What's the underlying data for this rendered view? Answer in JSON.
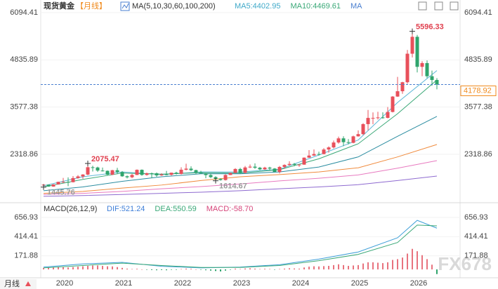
{
  "chart_data": {
    "type": "candlestick",
    "title": "现货黄金",
    "period": "【月线】",
    "ma_legend": "MA(5,10,30,60,100,200)",
    "ma_readouts": [
      {
        "text": "MA5:4402.95",
        "color": "#3fa9c9"
      },
      {
        "text": "MA10:4469.61",
        "color": "#3aa877"
      },
      {
        "text": "MA",
        "color": "#4a7fd0"
      }
    ],
    "categories": [
      null,
      null,
      null,
      "2020",
      null,
      null,
      null,
      null,
      null,
      null,
      null,
      null,
      null,
      null,
      null,
      "2021",
      null,
      null,
      null,
      null,
      null,
      null,
      null,
      null,
      null,
      null,
      null,
      "2022",
      null,
      null,
      null,
      null,
      null,
      null,
      null,
      null,
      null,
      null,
      null,
      "2023",
      null,
      null,
      null,
      null,
      null,
      null,
      null,
      null,
      null,
      null,
      null,
      "2024",
      null,
      null,
      null,
      null,
      null,
      null,
      null,
      null,
      null,
      null,
      null,
      "2025",
      null,
      null,
      null,
      null,
      null,
      null,
      null,
      null,
      null,
      null,
      null,
      "2026",
      null,
      null,
      null,
      null,
      null
    ],
    "ohlc": [
      [
        1490,
        1530,
        1445.76,
        1510
      ],
      [
        1510,
        1515,
        1455,
        1460
      ],
      [
        1460,
        1525,
        1455,
        1517
      ],
      [
        1517,
        1590,
        1510,
        1585
      ],
      [
        1585,
        1690,
        1560,
        1585
      ],
      [
        1585,
        1705,
        1470,
        1577
      ],
      [
        1577,
        1740,
        1570,
        1686
      ],
      [
        1686,
        1765,
        1670,
        1730
      ],
      [
        1730,
        1790,
        1670,
        1780
      ],
      [
        1780,
        2075.47,
        1760,
        1975
      ],
      [
        1975,
        2015,
        1860,
        1968
      ],
      [
        1968,
        1990,
        1850,
        1886
      ],
      [
        1886,
        1965,
        1860,
        1879
      ],
      [
        1879,
        1890,
        1765,
        1776
      ],
      [
        1776,
        1905,
        1765,
        1895
      ],
      [
        1895,
        1960,
        1805,
        1847
      ],
      [
        1847,
        1872,
        1718,
        1734
      ],
      [
        1734,
        1755,
        1677,
        1708
      ],
      [
        1708,
        1798,
        1680,
        1769
      ],
      [
        1769,
        1916,
        1765,
        1906
      ],
      [
        1906,
        1917,
        1750,
        1770
      ],
      [
        1770,
        1832,
        1752,
        1814
      ],
      [
        1814,
        1834,
        1687,
        1813
      ],
      [
        1813,
        1835,
        1720,
        1757
      ],
      [
        1757,
        1814,
        1746,
        1783
      ],
      [
        1783,
        1877,
        1758,
        1774
      ],
      [
        1774,
        1831,
        1753,
        1829
      ],
      [
        1829,
        1853,
        1780,
        1797
      ],
      [
        1797,
        1974,
        1781,
        1909
      ],
      [
        1909,
        2070,
        1890,
        1937
      ],
      [
        1937,
        1998,
        1872,
        1897
      ],
      [
        1897,
        1910,
        1787,
        1837
      ],
      [
        1837,
        1879,
        1805,
        1807
      ],
      [
        1807,
        1814,
        1680,
        1766
      ],
      [
        1766,
        1808,
        1688,
        1711
      ],
      [
        1711,
        1735,
        1614.67,
        1661
      ],
      [
        1661,
        1680,
        1617,
        1633
      ],
      [
        1633,
        1786,
        1620,
        1768
      ],
      [
        1768,
        1833,
        1765,
        1824
      ],
      [
        1824,
        1949,
        1823,
        1928
      ],
      [
        1928,
        1960,
        1804,
        1827
      ],
      [
        1827,
        2009,
        1810,
        1969
      ],
      [
        1969,
        2048,
        1949,
        1990
      ],
      [
        1990,
        2079,
        1932,
        1962
      ],
      [
        1962,
        1985,
        1893,
        1919
      ],
      [
        1919,
        1987,
        1903,
        1965
      ],
      [
        1965,
        1987,
        1885,
        1940
      ],
      [
        1940,
        1953,
        1848,
        1849
      ],
      [
        1849,
        2009,
        1810,
        1983
      ],
      [
        1983,
        2052,
        1932,
        2036
      ],
      [
        2036,
        2135,
        2017,
        2063
      ],
      [
        2063,
        2088,
        2002,
        2039
      ],
      [
        2039,
        2052,
        1984,
        2044
      ],
      [
        2044,
        2236,
        2040,
        2230
      ],
      [
        2230,
        2431,
        2228,
        2286
      ],
      [
        2286,
        2450,
        2277,
        2327
      ],
      [
        2327,
        2388,
        2286,
        2326
      ],
      [
        2326,
        2483,
        2319,
        2447
      ],
      [
        2447,
        2531,
        2364,
        2503
      ],
      [
        2503,
        2685,
        2472,
        2634
      ],
      [
        2634,
        2790,
        2603,
        2744
      ],
      [
        2744,
        2801,
        2536,
        2643
      ],
      [
        2643,
        2726,
        2583,
        2625
      ],
      [
        2625,
        2817,
        2614,
        2798
      ],
      [
        2798,
        2956,
        2790,
        2857
      ],
      [
        2857,
        3148,
        2833,
        3124
      ],
      [
        3124,
        3500,
        2957,
        3289
      ],
      [
        3289,
        3435,
        3121,
        3289
      ],
      [
        3289,
        3451,
        3247,
        3303
      ],
      [
        3303,
        3439,
        3268,
        3290
      ],
      [
        3290,
        3578,
        3280,
        3448
      ],
      [
        3448,
        3871,
        3436,
        3858
      ],
      [
        3858,
        4381,
        3850,
        4000
      ],
      [
        4000,
        4250,
        3930,
        4240
      ],
      [
        4240,
        5100,
        4200,
        5000
      ],
      [
        5000,
        5596.33,
        4900,
        5450
      ],
      [
        5450,
        5500,
        4500,
        4650
      ],
      [
        4650,
        4800,
        4400,
        4750
      ],
      [
        4750,
        4820,
        4350,
        4400
      ],
      [
        4400,
        4550,
        4150,
        4300
      ],
      [
        4300,
        4350,
        4050,
        4178.92
      ]
    ],
    "up_color": "#e8505b",
    "down_color": "#2fa46c",
    "ylim": [
      1104,
      6244
    ],
    "yticks": [
      2318.86,
      3577.38,
      4835.89,
      6094.41
    ],
    "ma": [
      {
        "color": "#5bb6d6",
        "x": [
          0,
          8,
          16,
          24,
          32,
          40,
          48,
          56,
          64,
          72,
          80
        ],
        "values": [
          1480,
          1720,
          1850,
          1780,
          1850,
          1850,
          1920,
          2300,
          2700,
          3700,
          4550
        ]
      },
      {
        "color": "#3aa877",
        "x": [
          0,
          8,
          16,
          24,
          32,
          40,
          48,
          56,
          64,
          72,
          80
        ],
        "values": [
          1450,
          1650,
          1820,
          1790,
          1830,
          1820,
          1910,
          2200,
          2600,
          3400,
          4300
        ]
      },
      {
        "color": "#2a8ca0",
        "x": [
          0,
          8,
          16,
          24,
          32,
          40,
          48,
          56,
          64,
          72,
          80
        ],
        "values": [
          1350,
          1450,
          1600,
          1720,
          1800,
          1800,
          1850,
          1980,
          2250,
          2800,
          3330
        ]
      },
      {
        "color": "#f08a3c",
        "x": [
          0,
          8,
          16,
          24,
          32,
          40,
          48,
          56,
          64,
          72,
          80
        ],
        "values": [
          1280,
          1330,
          1420,
          1500,
          1620,
          1720,
          1780,
          1850,
          1960,
          2250,
          2580
        ]
      },
      {
        "color": "#e87ac0",
        "x": [
          0,
          8,
          16,
          24,
          32,
          40,
          48,
          56,
          64,
          72,
          80
        ],
        "values": [
          1250,
          1280,
          1330,
          1400,
          1460,
          1530,
          1610,
          1680,
          1770,
          1950,
          2150
        ]
      },
      {
        "color": "#8e6ad0",
        "x": [
          0,
          8,
          16,
          24,
          32,
          40,
          48,
          56,
          64,
          72,
          80
        ],
        "values": [
          1200,
          1220,
          1250,
          1280,
          1310,
          1350,
          1400,
          1450,
          1510,
          1620,
          1740
        ]
      }
    ],
    "annotations": [
      {
        "text": "5596.33",
        "candle": 75
      },
      {
        "text": "2075.47",
        "candle": 9
      },
      {
        "text": "1445.76",
        "candle": 0
      },
      {
        "text": "1614.67",
        "candle": 35
      }
    ],
    "macd": {
      "title": "MACD(26,12,9)",
      "readouts": [
        {
          "text": "DIF:521.24",
          "color": "#3f7fd8"
        },
        {
          "text": "DEA:550.59",
          "color": "#3aa877"
        },
        {
          "text": "MACD:-58.70",
          "color": "#d6457a"
        }
      ],
      "ylim": [
        -70,
        745
      ],
      "yticks": [
        171.88,
        414.41,
        656.93
      ],
      "histogram": [
        20,
        22,
        25,
        30,
        28,
        25,
        30,
        35,
        40,
        45,
        50,
        50,
        45,
        40,
        38,
        30,
        20,
        10,
        5,
        8,
        0,
        -5,
        -8,
        -10,
        -8,
        -10,
        -5,
        -5,
        5,
        10,
        8,
        0,
        -5,
        -10,
        -15,
        -20,
        -25,
        -15,
        -5,
        10,
        5,
        12,
        15,
        10,
        5,
        8,
        5,
        -2,
        5,
        10,
        15,
        12,
        10,
        25,
        35,
        40,
        38,
        42,
        45,
        55,
        65,
        55,
        45,
        50,
        55,
        75,
        90,
        90,
        85,
        80,
        90,
        120,
        130,
        150,
        200,
        260,
        230,
        180,
        130,
        60,
        -58.7
      ],
      "lines": [
        {
          "color": "#3f9fd8",
          "x": [
            0,
            8,
            16,
            24,
            32,
            40,
            48,
            56,
            64,
            72,
            76,
            80
          ],
          "values": [
            30,
            70,
            90,
            40,
            20,
            30,
            60,
            130,
            220,
            400,
            620,
            521.24
          ]
        },
        {
          "color": "#3aa877",
          "x": [
            0,
            8,
            16,
            24,
            32,
            40,
            48,
            56,
            64,
            72,
            76,
            80
          ],
          "values": [
            20,
            50,
            80,
            50,
            25,
            25,
            50,
            110,
            190,
            340,
            560,
            550.59
          ]
        }
      ]
    },
    "period_button": "月线",
    "watermark": "FX678"
  }
}
